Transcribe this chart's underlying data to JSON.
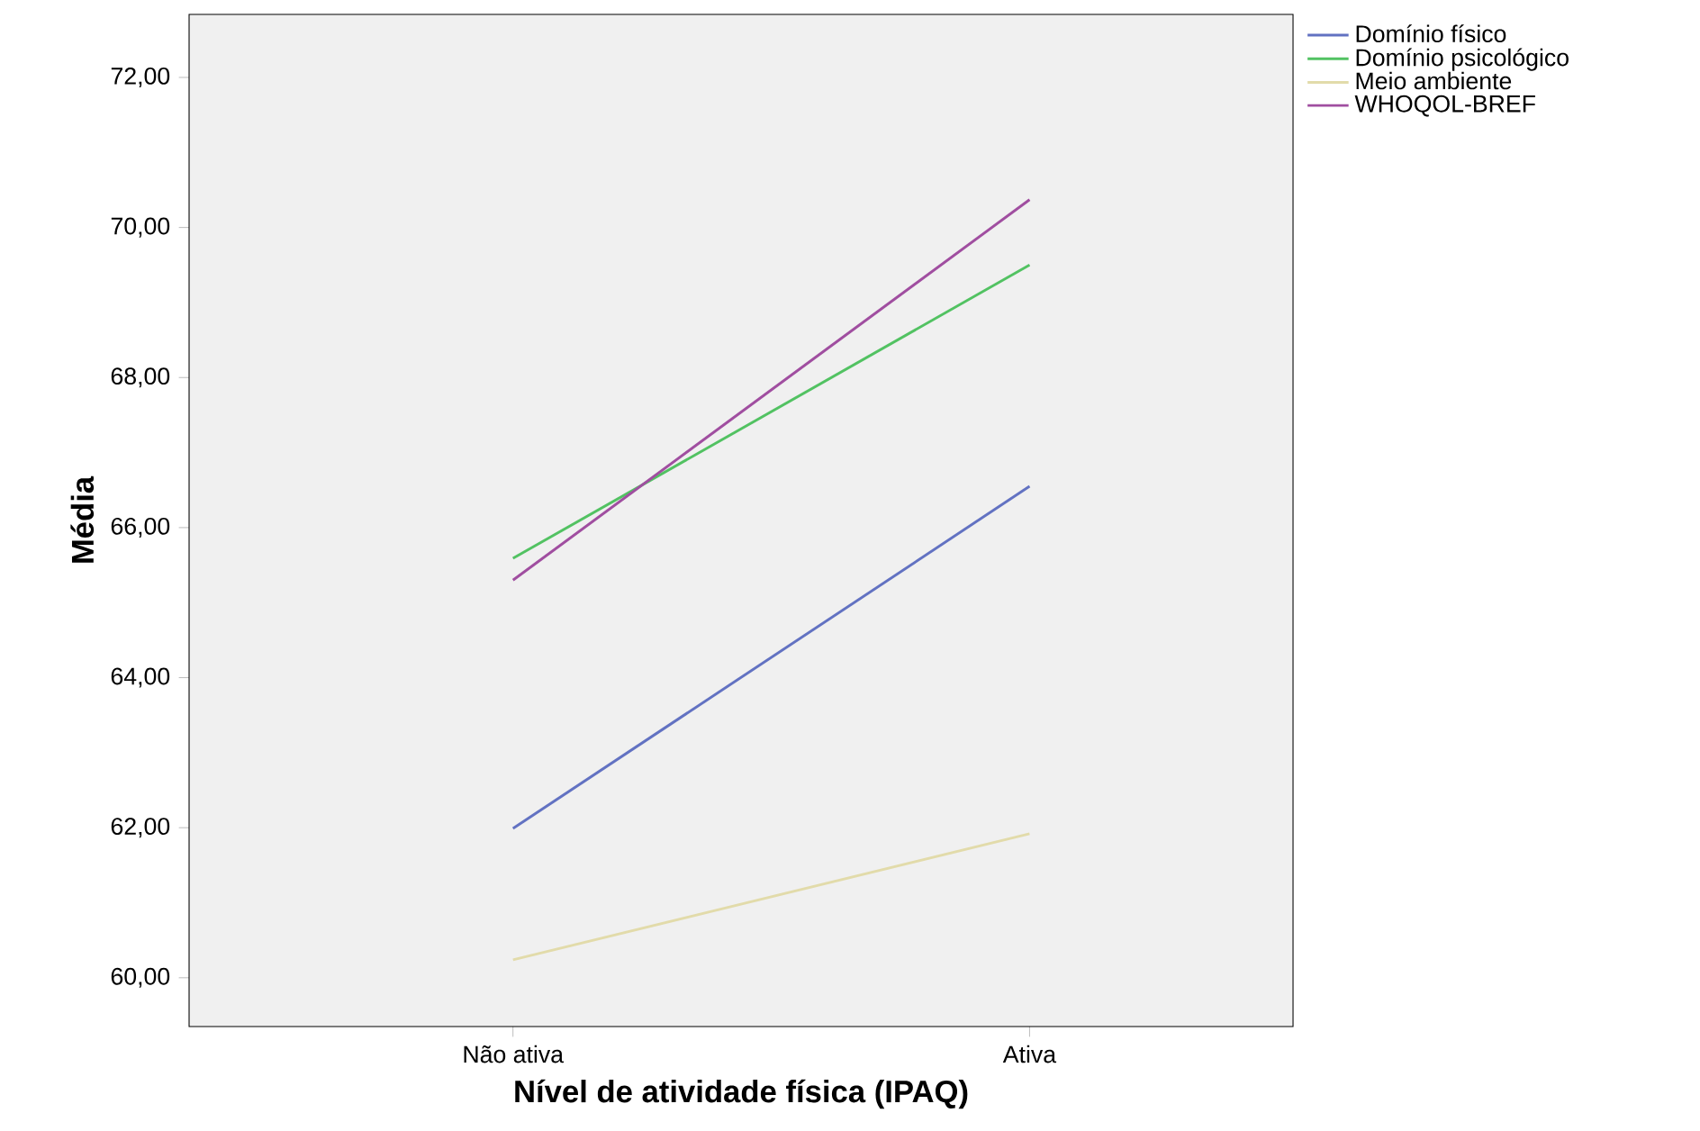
{
  "chart_data": {
    "type": "line",
    "xlabel": "Nível de atividade física (IPAQ)",
    "ylabel": "Média",
    "categories": [
      "Não ativa",
      "Ativa"
    ],
    "series": [
      {
        "name": "Domínio físico",
        "color": "#6272c2",
        "values": [
          61.99,
          66.55
        ]
      },
      {
        "name": "Domínio psicológico",
        "color": "#52c262",
        "values": [
          65.59,
          69.5
        ]
      },
      {
        "name": "Meio ambiente",
        "color": "#e2dbaa",
        "values": [
          60.24,
          61.92
        ]
      },
      {
        "name": "WHOQOL-BREF",
        "color": "#a04ea0",
        "values": [
          65.3,
          70.37
        ]
      }
    ],
    "ylim": [
      59.35,
      72.84
    ],
    "yticks": [
      {
        "value": 60,
        "label": "60,00"
      },
      {
        "value": 62,
        "label": "62,00"
      },
      {
        "value": 64,
        "label": "64,00"
      },
      {
        "value": 66,
        "label": "66,00"
      },
      {
        "value": 68,
        "label": "68,00"
      },
      {
        "value": 70,
        "label": "70,00"
      },
      {
        "value": 72,
        "label": "72,00"
      }
    ],
    "legend": "right",
    "grid": false,
    "marker": "none",
    "line_style": "solid"
  }
}
